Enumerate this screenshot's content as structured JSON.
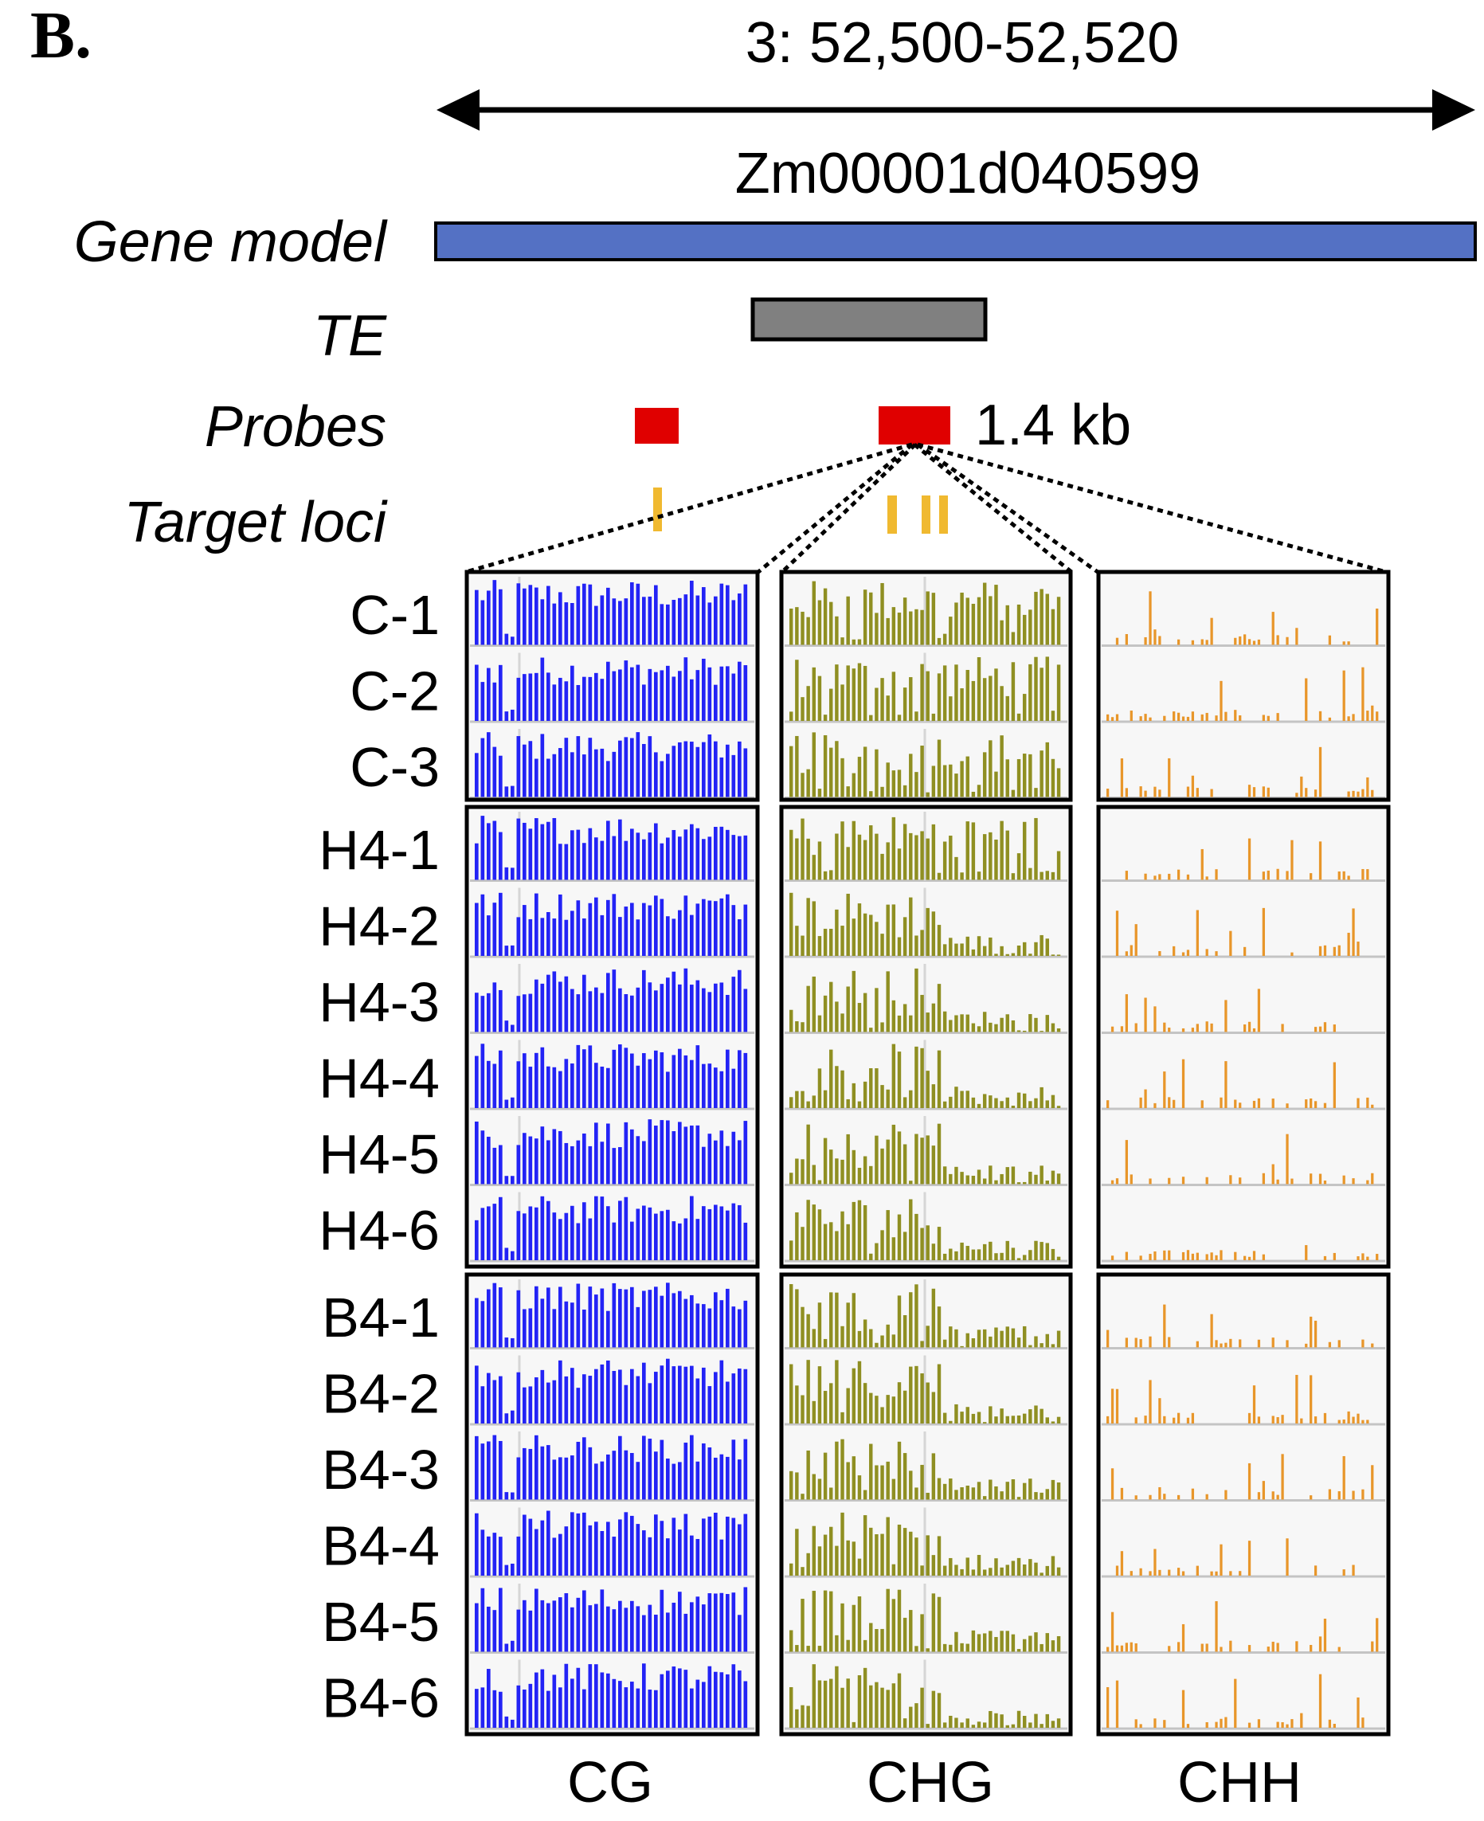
{
  "panel_label": "B.",
  "region_label": "3: 52,500-52,520",
  "gene_id": "Zm00001d040599",
  "probe_size_label": "1.4 kb",
  "track_labels": {
    "gene_model": "Gene model",
    "te": "TE",
    "probes": "Probes",
    "target_loci": "Target loci"
  },
  "contexts": [
    {
      "name": "CG",
      "color": "#2323f5"
    },
    {
      "name": "CHG",
      "color": "#8f8f22"
    },
    {
      "name": "CHH",
      "color": "#e8962a"
    }
  ],
  "groups": [
    {
      "rows": [
        "C-1",
        "C-2",
        "C-3"
      ]
    },
    {
      "rows": [
        "H4-1",
        "H4-2",
        "H4-3",
        "H4-4",
        "H4-5",
        "H4-6"
      ]
    },
    {
      "rows": [
        "B4-1",
        "B4-2",
        "B4-3",
        "B4-4",
        "B4-5",
        "B4-6"
      ]
    }
  ],
  "colors": {
    "gene_model": "#5471c4",
    "te": "#808080",
    "probe": "#e00000",
    "target_locus": "#f0b930",
    "track_background": "#f7f7f7",
    "track_baseline": "#c4c4c4"
  }
}
